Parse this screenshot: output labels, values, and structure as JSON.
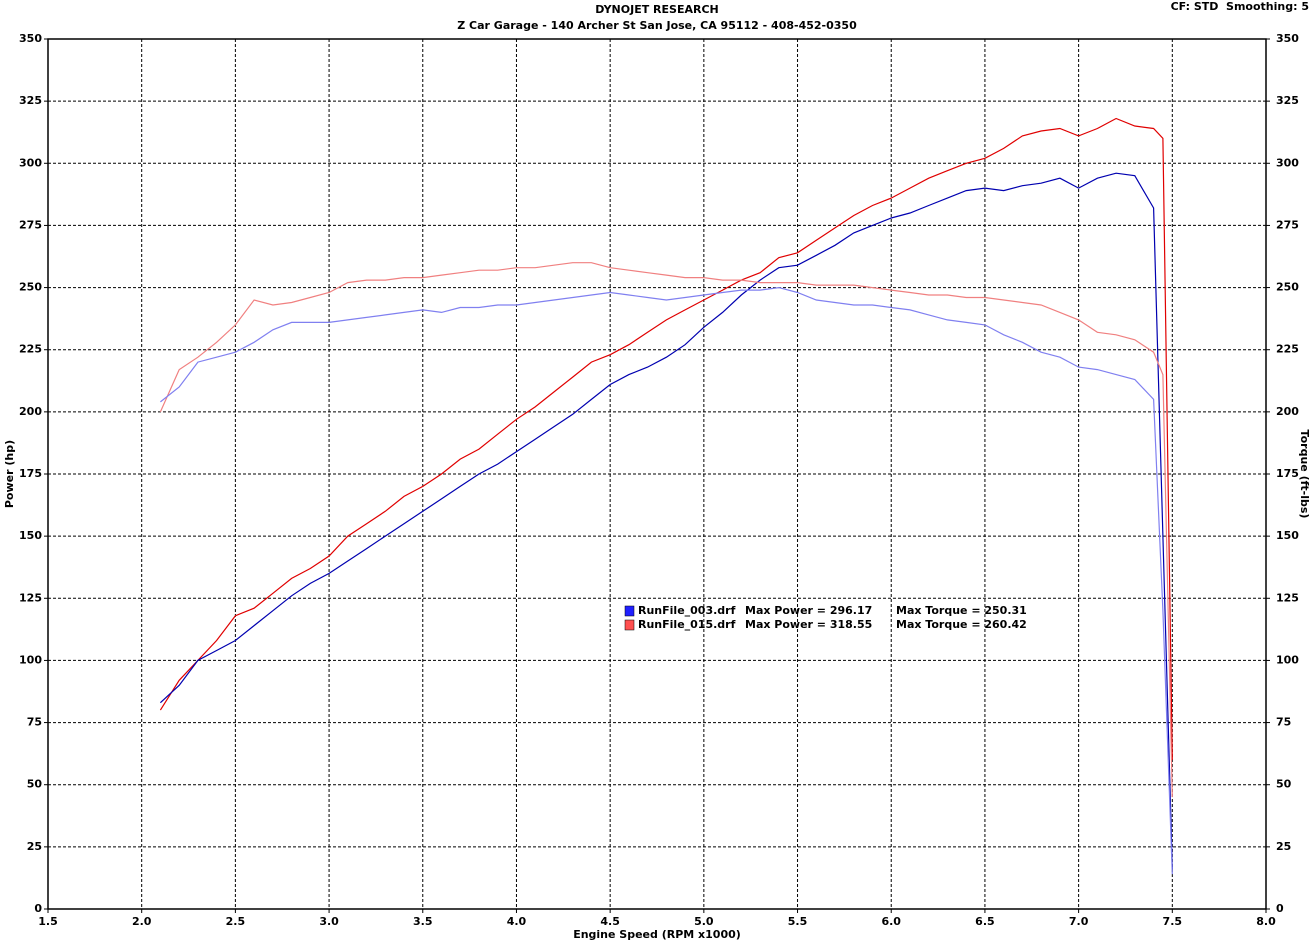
{
  "chart_data": {
    "type": "line",
    "title": "DYNOJET RESEARCH",
    "subtitle": "Z Car Garage - 140 Archer St San Jose, CA 95112 - 408-452-0350",
    "settings_text": "CF: STD  Smoothing: 5",
    "xlabel": "Engine Speed (RPM x1000)",
    "ylabel": "Power (hp)",
    "y2label": "Torque (ft-lbs)",
    "grid": true,
    "xlim": [
      1.5,
      8.0
    ],
    "xticks": [
      1.5,
      {
        "value": 2,
        "label": "2.0"
      },
      2.5,
      {
        "value": 3,
        "label": "3.0"
      },
      3.5,
      {
        "value": 4,
        "label": "4.0"
      },
      4.5,
      {
        "value": 5,
        "label": "5.0"
      },
      5.5,
      {
        "value": 6,
        "label": "6.0"
      },
      6.5,
      {
        "value": 7,
        "label": "7.0"
      },
      7.5,
      {
        "value": 8,
        "label": "8.0"
      }
    ],
    "ylim": [
      0,
      350
    ],
    "yticks": [
      0,
      25,
      50,
      75,
      100,
      125,
      150,
      175,
      200,
      225,
      250,
      275,
      300,
      325,
      350
    ],
    "y2lim": [
      0,
      350
    ],
    "y2ticks": [
      0,
      25,
      50,
      75,
      100,
      125,
      150,
      175,
      200,
      225,
      250,
      275,
      300,
      325,
      350
    ],
    "x": [
      2.1,
      2.2,
      2.3,
      2.4,
      2.5,
      2.6,
      2.7,
      2.8,
      2.9,
      3.0,
      3.1,
      3.2,
      3.3,
      3.4,
      3.5,
      3.6,
      3.7,
      3.8,
      3.9,
      4.0,
      4.1,
      4.2,
      4.3,
      4.4,
      4.5,
      4.6,
      4.7,
      4.8,
      4.9,
      5.0,
      5.1,
      5.2,
      5.3,
      5.4,
      5.5,
      5.6,
      5.7,
      5.8,
      5.9,
      6.0,
      6.1,
      6.2,
      6.3,
      6.4,
      6.5,
      6.6,
      6.7,
      6.8,
      6.9,
      7.0,
      7.1,
      7.2,
      7.3,
      7.4,
      7.45,
      7.5
    ],
    "series": [
      {
        "color": "#e00000",
        "axis": "y",
        "values": [
          80,
          92,
          100,
          108,
          118,
          121,
          127,
          133,
          137,
          142,
          150,
          155,
          160,
          166,
          170,
          175,
          181,
          185,
          191,
          197,
          202,
          208,
          214,
          220,
          223,
          227,
          232,
          237,
          241,
          245,
          249,
          253,
          256,
          262,
          264,
          269,
          274,
          279,
          283,
          286,
          290,
          294,
          297,
          300,
          302,
          306,
          311,
          313,
          314,
          311,
          314,
          318,
          315,
          314,
          310,
          60
        ]
      },
      {
        "color": "#0000b0",
        "axis": "y",
        "values": [
          83,
          90,
          100,
          104,
          108,
          114,
          120,
          126,
          131,
          135,
          140,
          145,
          150,
          155,
          160,
          165,
          170,
          175,
          179,
          184,
          189,
          194,
          199,
          205,
          211,
          215,
          218,
          222,
          227,
          234,
          240,
          247,
          253,
          258,
          259,
          263,
          267,
          272,
          275,
          278,
          280,
          283,
          286,
          289,
          290,
          289,
          291,
          292,
          294,
          290,
          294,
          296,
          295,
          282,
          150,
          16
        ]
      },
      {
        "color": "#f08080",
        "axis": "y2",
        "values": [
          200,
          217,
          222,
          228,
          235,
          245,
          243,
          244,
          246,
          248,
          252,
          253,
          253,
          254,
          254,
          255,
          256,
          257,
          257,
          258,
          258,
          259,
          260,
          260,
          258,
          257,
          256,
          255,
          254,
          254,
          253,
          253,
          252,
          252,
          252,
          251,
          251,
          251,
          250,
          249,
          248,
          247,
          247,
          246,
          246,
          245,
          244,
          243,
          240,
          237,
          232,
          231,
          229,
          224,
          215,
          45
        ]
      },
      {
        "color": "#8080f0",
        "axis": "y2",
        "values": [
          204,
          210,
          220,
          222,
          224,
          228,
          233,
          236,
          236,
          236,
          237,
          238,
          239,
          240,
          241,
          240,
          242,
          242,
          243,
          243,
          244,
          245,
          246,
          247,
          248,
          247,
          246,
          245,
          246,
          247,
          248,
          249,
          249,
          250,
          248,
          245,
          244,
          243,
          243,
          242,
          241,
          239,
          237,
          236,
          235,
          231,
          228,
          224,
          222,
          218,
          217,
          215,
          213,
          205,
          120,
          14
        ]
      }
    ],
    "legend": [
      {
        "color": "#2020ff",
        "file": "RunFile_003.drf",
        "max_power": "Max Power = 296.17",
        "max_torque": "Max Torque = 250.31"
      },
      {
        "color": "#ff5050",
        "file": "RunFile_015.drf",
        "max_power": "Max Power = 318.55",
        "max_torque": "Max Torque = 260.42"
      }
    ]
  }
}
